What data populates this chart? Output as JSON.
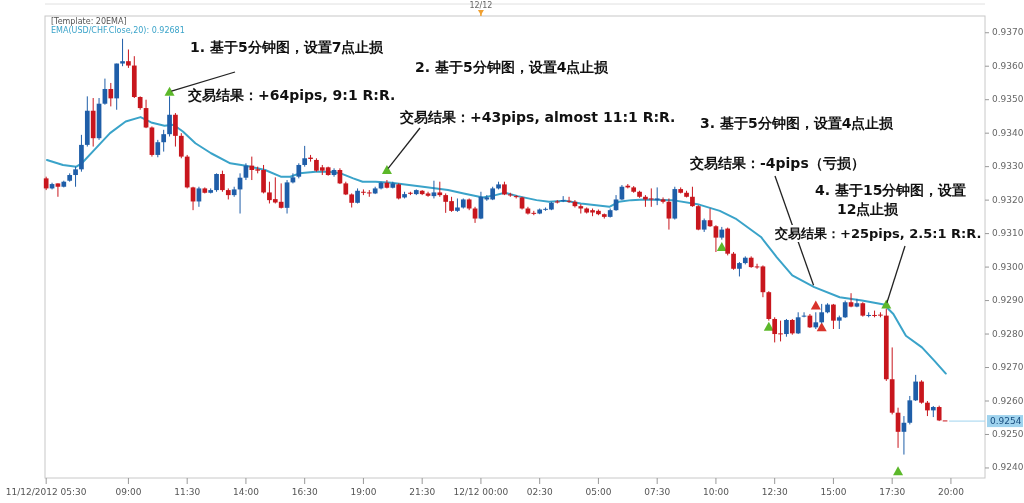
{
  "chart_data": {
    "type": "candlestick",
    "legend_title": "[Template: 20EMA]",
    "legend": "top left",
    "annotations": [
      "1. 基于5分钟图，设置7点止损",
      {
        "text": "交易结果：+64pips, 9:1 R:R.",
        "x": "2012-12-11T10:45",
        "y": 0.93524
      },
      "2. 基于5分钟图，设置4点止损",
      {
        "text": "交易结果：+43pips, almost 11:1 R:R.",
        "x": "2012-12-11T20:00",
        "y": 0.9329
      },
      "3. 基于5分钟图，设置4点止损",
      {
        "text": "交易结果：-4pips（亏损）",
        "x": "2012-12-12T14:11",
        "y": 0.9294
      },
      "4. 基于15分钟图，设置12点止损",
      {
        "text": "交易结果：+25pips, 2.5:1 R:R.",
        "x": "2012-12-12T17:15",
        "y": 0.92888
      }
    ],
    "xlim": [
      "2012-12-11T05:27",
      "2012-12-12T21:27"
    ],
    "xticks": [
      {
        "value": "2012-12-11T05:30",
        "label": "11/12/2012 05:30"
      },
      {
        "value": "2012-12-11T09:00",
        "label": "09:00"
      },
      {
        "value": "2012-12-11T11:30",
        "label": "11:30"
      },
      {
        "value": "2012-12-11T14:00",
        "label": "14:00"
      },
      {
        "value": "2012-12-11T16:30",
        "label": "16:30"
      },
      {
        "value": "2012-12-11T19:00",
        "label": "19:00"
      },
      {
        "value": "2012-12-11T21:30",
        "label": "21:30"
      },
      {
        "value": "2012-12-12T00:00",
        "label": "12/12 00:00"
      },
      {
        "value": "2012-12-12T02:30",
        "label": "02:30"
      },
      {
        "value": "2012-12-12T05:00",
        "label": "05:00"
      },
      {
        "value": "2012-12-12T07:30",
        "label": "07:30"
      },
      {
        "value": "2012-12-12T10:00",
        "label": "10:00"
      },
      {
        "value": "2012-12-12T12:30",
        "label": "12:30"
      },
      {
        "value": "2012-12-12T15:00",
        "label": "15:00"
      },
      {
        "value": "2012-12-12T17:30",
        "label": "17:30"
      },
      {
        "value": "2012-12-12T20:00",
        "label": "20:00"
      }
    ],
    "ylim": [
      0.9237,
      0.9375
    ],
    "yticks": [
      {
        "value": 0.924,
        "label": "0.9240"
      },
      {
        "value": 0.925,
        "label": "0.9250"
      },
      {
        "value": 0.926,
        "label": "0.9260"
      },
      {
        "value": 0.927,
        "label": "0.9270"
      },
      {
        "value": 0.928,
        "label": "0.9280"
      },
      {
        "value": 0.929,
        "label": "0.9290"
      },
      {
        "value": 0.93,
        "label": "0.9300"
      },
      {
        "value": 0.931,
        "label": "0.9310"
      },
      {
        "value": 0.932,
        "label": "0.9320"
      },
      {
        "value": 0.933,
        "label": "0.9330"
      },
      {
        "value": 0.934,
        "label": "0.9340"
      },
      {
        "value": 0.935,
        "label": "0.9350"
      },
      {
        "value": 0.936,
        "label": "0.9360"
      },
      {
        "value": 0.937,
        "label": "0.9370"
      }
    ],
    "ref_lines": [
      {
        "axis": "y",
        "value": 0.9254,
        "label": "0.9254",
        "color": "#9fd3ee"
      },
      {
        "axis": "x",
        "value": "2012-12-12T00:00",
        "label": "12/12",
        "color": "#f0a030"
      }
    ],
    "x": [
      "2012-12-11T05:30",
      "2012-12-11T05:45",
      "2012-12-11T06:00",
      "2012-12-11T06:15",
      "2012-12-11T06:30",
      "2012-12-11T06:45",
      "2012-12-11T07:00",
      "2012-12-11T07:15",
      "2012-12-11T07:30",
      "2012-12-11T07:45",
      "2012-12-11T08:00",
      "2012-12-11T08:15",
      "2012-12-11T08:30",
      "2012-12-11T08:45",
      "2012-12-11T09:00",
      "2012-12-11T09:15",
      "2012-12-11T09:30",
      "2012-12-11T09:45",
      "2012-12-11T10:00",
      "2012-12-11T10:15",
      "2012-12-11T10:30",
      "2012-12-11T10:45",
      "2012-12-11T11:00",
      "2012-12-11T11:15",
      "2012-12-11T11:30",
      "2012-12-11T11:45",
      "2012-12-11T12:00",
      "2012-12-11T12:15",
      "2012-12-11T12:30",
      "2012-12-11T12:45",
      "2012-12-11T13:00",
      "2012-12-11T13:15",
      "2012-12-11T13:30",
      "2012-12-11T13:45",
      "2012-12-11T14:00",
      "2012-12-11T14:15",
      "2012-12-11T14:30",
      "2012-12-11T14:45",
      "2012-12-11T15:00",
      "2012-12-11T15:15",
      "2012-12-11T15:30",
      "2012-12-11T15:45",
      "2012-12-11T16:00",
      "2012-12-11T16:15",
      "2012-12-11T16:30",
      "2012-12-11T16:45",
      "2012-12-11T17:00",
      "2012-12-11T17:15",
      "2012-12-11T17:30",
      "2012-12-11T17:45",
      "2012-12-11T18:00",
      "2012-12-11T18:15",
      "2012-12-11T18:30",
      "2012-12-11T18:45",
      "2012-12-11T19:00",
      "2012-12-11T19:15",
      "2012-12-11T19:30",
      "2012-12-11T19:45",
      "2012-12-11T20:00",
      "2012-12-11T20:15",
      "2012-12-11T20:30",
      "2012-12-11T20:45",
      "2012-12-11T21:00",
      "2012-12-11T21:15",
      "2012-12-11T21:30",
      "2012-12-11T21:45",
      "2012-12-11T22:00",
      "2012-12-11T22:15",
      "2012-12-11T22:30",
      "2012-12-11T22:45",
      "2012-12-11T23:00",
      "2012-12-11T23:15",
      "2012-12-11T23:30",
      "2012-12-11T23:45",
      "2012-12-12T00:00",
      "2012-12-12T00:15",
      "2012-12-12T00:30",
      "2012-12-12T00:45",
      "2012-12-12T01:00",
      "2012-12-12T01:15",
      "2012-12-12T01:30",
      "2012-12-12T01:45",
      "2012-12-12T02:00",
      "2012-12-12T02:15",
      "2012-12-12T02:30",
      "2012-12-12T02:45",
      "2012-12-12T03:00",
      "2012-12-12T03:15",
      "2012-12-12T03:30",
      "2012-12-12T03:45",
      "2012-12-12T04:00",
      "2012-12-12T04:15",
      "2012-12-12T04:30",
      "2012-12-12T04:45",
      "2012-12-12T05:00",
      "2012-12-12T05:15",
      "2012-12-12T05:30",
      "2012-12-12T05:45",
      "2012-12-12T06:00",
      "2012-12-12T06:15",
      "2012-12-12T06:30",
      "2012-12-12T06:45",
      "2012-12-12T07:00",
      "2012-12-12T07:15",
      "2012-12-12T07:30",
      "2012-12-12T07:45",
      "2012-12-12T08:00",
      "2012-12-12T08:15",
      "2012-12-12T08:30",
      "2012-12-12T08:45",
      "2012-12-12T09:00",
      "2012-12-12T09:15",
      "2012-12-12T09:30",
      "2012-12-12T09:45",
      "2012-12-12T10:00",
      "2012-12-12T10:15",
      "2012-12-12T10:30",
      "2012-12-12T10:45",
      "2012-12-12T11:00",
      "2012-12-12T11:15",
      "2012-12-12T11:30",
      "2012-12-12T11:45",
      "2012-12-12T12:00",
      "2012-12-12T12:15",
      "2012-12-12T12:30",
      "2012-12-12T12:45",
      "2012-12-12T13:00",
      "2012-12-12T13:15",
      "2012-12-12T13:30",
      "2012-12-12T13:45",
      "2012-12-12T14:00",
      "2012-12-12T14:15",
      "2012-12-12T14:30",
      "2012-12-12T14:45",
      "2012-12-12T15:00",
      "2012-12-12T15:15",
      "2012-12-12T15:30",
      "2012-12-12T15:45",
      "2012-12-12T16:00",
      "2012-12-12T16:15",
      "2012-12-12T16:30",
      "2012-12-12T16:45",
      "2012-12-12T17:00",
      "2012-12-12T17:15",
      "2012-12-12T17:30",
      "2012-12-12T17:45",
      "2012-12-12T18:00",
      "2012-12-12T18:15",
      "2012-12-12T18:30",
      "2012-12-12T18:45",
      "2012-12-12T19:00",
      "2012-12-12T19:15",
      "2012-12-12T19:30",
      "2012-12-12T19:45"
    ],
    "ohlc": [
      [
        0.93265,
        0.9327,
        0.9323,
        0.93235
      ],
      [
        0.93235,
        0.93252,
        0.93232,
        0.93248
      ],
      [
        0.9325,
        0.9325,
        0.9321,
        0.9324
      ],
      [
        0.9324,
        0.93258,
        0.93238,
        0.93255
      ],
      [
        0.93258,
        0.9328,
        0.93255,
        0.93275
      ],
      [
        0.93275,
        0.933,
        0.9324,
        0.93292
      ],
      [
        0.93292,
        0.93395,
        0.93285,
        0.93365
      ],
      [
        0.93365,
        0.9351,
        0.9336,
        0.93467
      ],
      [
        0.93467,
        0.93505,
        0.9336,
        0.93385
      ],
      [
        0.93385,
        0.93505,
        0.9338,
        0.93488
      ],
      [
        0.93488,
        0.93563,
        0.93485,
        0.93532
      ],
      [
        0.93532,
        0.9355,
        0.9348,
        0.93504
      ],
      [
        0.93504,
        0.93608,
        0.9347,
        0.93608
      ],
      [
        0.93608,
        0.93682,
        0.936,
        0.93615
      ],
      [
        0.93615,
        0.9365,
        0.93595,
        0.93602
      ],
      [
        0.93602,
        0.9363,
        0.93505,
        0.93508
      ],
      [
        0.93508,
        0.9351,
        0.9347,
        0.93475
      ],
      [
        0.93475,
        0.935,
        0.93415,
        0.93417
      ],
      [
        0.93417,
        0.9342,
        0.9333,
        0.93335
      ],
      [
        0.93335,
        0.9338,
        0.93328,
        0.93373
      ],
      [
        0.93373,
        0.9341,
        0.93345,
        0.93397
      ],
      [
        0.93397,
        0.9351,
        0.9339,
        0.93455
      ],
      [
        0.93455,
        0.9346,
        0.9336,
        0.93392
      ],
      [
        0.93392,
        0.934,
        0.93325,
        0.9333
      ],
      [
        0.9333,
        0.93335,
        0.93235,
        0.93238
      ],
      [
        0.93238,
        0.9324,
        0.9317,
        0.93196
      ],
      [
        0.93196,
        0.9324,
        0.9318,
        0.93235
      ],
      [
        0.93235,
        0.93238,
        0.9322,
        0.93222
      ],
      [
        0.93222,
        0.93235,
        0.9322,
        0.9323
      ],
      [
        0.9323,
        0.9328,
        0.93225,
        0.93278
      ],
      [
        0.93278,
        0.93288,
        0.93225,
        0.9323
      ],
      [
        0.9323,
        0.93235,
        0.93202,
        0.93215
      ],
      [
        0.93215,
        0.9324,
        0.9321,
        0.93232
      ],
      [
        0.93232,
        0.9328,
        0.9316,
        0.93267
      ],
      [
        0.93267,
        0.9331,
        0.9326,
        0.93303
      ],
      [
        0.93303,
        0.9333,
        0.9326,
        0.9329
      ],
      [
        0.93292,
        0.933,
        0.9328,
        0.93288
      ],
      [
        0.9329,
        0.93305,
        0.9322,
        0.93223
      ],
      [
        0.93223,
        0.93255,
        0.9319,
        0.932
      ],
      [
        0.93203,
        0.93268,
        0.9319,
        0.93193
      ],
      [
        0.93195,
        0.9325,
        0.93175,
        0.93177
      ],
      [
        0.93177,
        0.9326,
        0.9316,
        0.93253
      ],
      [
        0.93253,
        0.9328,
        0.9325,
        0.93268
      ],
      [
        0.9327,
        0.9331,
        0.93265,
        0.93305
      ],
      [
        0.93305,
        0.93362,
        0.933,
        0.93325
      ],
      [
        0.93327,
        0.93335,
        0.93315,
        0.93323
      ],
      [
        0.9332,
        0.93325,
        0.93285,
        0.93288
      ],
      [
        0.93298,
        0.93305,
        0.93275,
        0.93288
      ],
      [
        0.93298,
        0.933,
        0.93273,
        0.93275
      ],
      [
        0.93275,
        0.93295,
        0.9327,
        0.9329
      ],
      [
        0.9329,
        0.93295,
        0.93248,
        0.9325
      ],
      [
        0.9325,
        0.93255,
        0.93215,
        0.93217
      ],
      [
        0.93217,
        0.9322,
        0.93178,
        0.93192
      ],
      [
        0.93192,
        0.93235,
        0.9319,
        0.93228
      ],
      [
        0.93225,
        0.93232,
        0.93215,
        0.93222
      ],
      [
        0.93223,
        0.9323,
        0.9321,
        0.9322
      ],
      [
        0.9322,
        0.9324,
        0.93218,
        0.93235
      ],
      [
        0.93235,
        0.93255,
        0.93232,
        0.93252
      ],
      [
        0.93252,
        0.9326,
        0.93235,
        0.93237
      ],
      [
        0.93237,
        0.93255,
        0.93235,
        0.9325
      ],
      [
        0.93247,
        0.9325,
        0.93202,
        0.93205
      ],
      [
        0.93208,
        0.93225,
        0.93205,
        0.93218
      ],
      [
        0.93222,
        0.93225,
        0.93215,
        0.93219
      ],
      [
        0.93218,
        0.93232,
        0.93215,
        0.9323
      ],
      [
        0.93228,
        0.9323,
        0.93215,
        0.93218
      ],
      [
        0.9322,
        0.93225,
        0.9321,
        0.93213
      ],
      [
        0.93212,
        0.93258,
        0.93205,
        0.93223
      ],
      [
        0.93223,
        0.93255,
        0.9321,
        0.93215
      ],
      [
        0.93215,
        0.9322,
        0.93162,
        0.93195
      ],
      [
        0.93197,
        0.9321,
        0.93165,
        0.93168
      ],
      [
        0.93168,
        0.93205,
        0.93165,
        0.93178
      ],
      [
        0.93178,
        0.93205,
        0.93175,
        0.93202
      ],
      [
        0.93202,
        0.93205,
        0.9317,
        0.93175
      ],
      [
        0.93175,
        0.9318,
        0.93132,
        0.93145
      ],
      [
        0.93145,
        0.93225,
        0.93143,
        0.9321
      ],
      [
        0.93202,
        0.93215,
        0.93198,
        0.93208
      ],
      [
        0.93202,
        0.9324,
        0.932,
        0.93235
      ],
      [
        0.93235,
        0.93255,
        0.93232,
        0.93247
      ],
      [
        0.93247,
        0.93255,
        0.93215,
        0.93217
      ],
      [
        0.93217,
        0.93222,
        0.9321,
        0.93214
      ],
      [
        0.93212,
        0.93215,
        0.93205,
        0.93209
      ],
      [
        0.93208,
        0.9321,
        0.93172,
        0.93175
      ],
      [
        0.93175,
        0.9318,
        0.93157,
        0.9316
      ],
      [
        0.93162,
        0.93168,
        0.93155,
        0.93159
      ],
      [
        0.9316,
        0.93175,
        0.93158,
        0.93172
      ],
      [
        0.93172,
        0.93178,
        0.93168,
        0.93174
      ],
      [
        0.93172,
        0.93195,
        0.9317,
        0.93192
      ],
      [
        0.93196,
        0.932,
        0.9319,
        0.93193
      ],
      [
        0.93197,
        0.93212,
        0.93194,
        0.932
      ],
      [
        0.93198,
        0.9321,
        0.93192,
        0.93195
      ],
      [
        0.93195,
        0.932,
        0.93178,
        0.93182
      ],
      [
        0.93182,
        0.93188,
        0.9316,
        0.93175
      ],
      [
        0.93175,
        0.93178,
        0.9316,
        0.93163
      ],
      [
        0.9317,
        0.93175,
        0.93152,
        0.93163
      ],
      [
        0.93168,
        0.93172,
        0.93155,
        0.93158
      ],
      [
        0.93158,
        0.9316,
        0.93145,
        0.9315
      ],
      [
        0.9315,
        0.93175,
        0.93148,
        0.9317
      ],
      [
        0.9317,
        0.93215,
        0.93168,
        0.93202
      ],
      [
        0.93202,
        0.93245,
        0.932,
        0.9324
      ],
      [
        0.93243,
        0.93248,
        0.93235,
        0.93238
      ],
      [
        0.93238,
        0.93242,
        0.93222,
        0.93225
      ],
      [
        0.93225,
        0.93228,
        0.93207,
        0.9321
      ],
      [
        0.9321,
        0.93215,
        0.9318,
        0.93202
      ],
      [
        0.93205,
        0.93235,
        0.9318,
        0.93202
      ],
      [
        0.932,
        0.93238,
        0.93185,
        0.93205
      ],
      [
        0.93202,
        0.93208,
        0.9319,
        0.93195
      ],
      [
        0.93195,
        0.93205,
        0.93112,
        0.93145
      ],
      [
        0.93145,
        0.9324,
        0.93142,
        0.93233
      ],
      [
        0.93233,
        0.93238,
        0.9322,
        0.93222
      ],
      [
        0.93222,
        0.93228,
        0.93208,
        0.9321
      ],
      [
        0.9321,
        0.9324,
        0.9318,
        0.93182
      ],
      [
        0.93182,
        0.93185,
        0.9311,
        0.93112
      ],
      [
        0.93112,
        0.93145,
        0.93105,
        0.9314
      ],
      [
        0.9314,
        0.93175,
        0.9312,
        0.93122
      ],
      [
        0.93122,
        0.93125,
        0.93045,
        0.93088
      ],
      [
        0.93088,
        0.9312,
        0.93082,
        0.93112
      ],
      [
        0.93115,
        0.93118,
        0.93035,
        0.9304
      ],
      [
        0.9304,
        0.93045,
        0.92992,
        0.92995
      ],
      [
        0.92995,
        0.93015,
        0.92972,
        0.93012
      ],
      [
        0.93012,
        0.93032,
        0.93008,
        0.93028
      ],
      [
        0.93028,
        0.93032,
        0.92998,
        0.93
      ],
      [
        0.93002,
        0.9301,
        0.92995,
        0.92999
      ],
      [
        0.93002,
        0.93005,
        0.9291,
        0.92925
      ],
      [
        0.92925,
        0.92928,
        0.9284,
        0.92845
      ],
      [
        0.92845,
        0.9285,
        0.92775,
        0.928
      ],
      [
        0.92802,
        0.9284,
        0.92778,
        0.92799
      ],
      [
        0.928,
        0.92845,
        0.92792,
        0.92842
      ],
      [
        0.92842,
        0.92845,
        0.92798,
        0.92802
      ],
      [
        0.92802,
        0.92865,
        0.928,
        0.9285
      ],
      [
        0.92852,
        0.92865,
        0.9285,
        0.92855
      ],
      [
        0.92855,
        0.9286,
        0.92818,
        0.9282
      ],
      [
        0.9282,
        0.92865,
        0.92815,
        0.92835
      ],
      [
        0.92835,
        0.9289,
        0.92832,
        0.92865
      ],
      [
        0.92865,
        0.92892,
        0.92862,
        0.92888
      ],
      [
        0.92888,
        0.9289,
        0.92815,
        0.9284
      ],
      [
        0.9284,
        0.92855,
        0.92815,
        0.9285
      ],
      [
        0.9285,
        0.929,
        0.92848,
        0.92895
      ],
      [
        0.92895,
        0.92922,
        0.9288,
        0.92882
      ],
      [
        0.92882,
        0.92905,
        0.9288,
        0.92892
      ],
      [
        0.92892,
        0.92895,
        0.92852,
        0.92855
      ],
      [
        0.92854,
        0.92865,
        0.9285,
        0.92857
      ],
      [
        0.92857,
        0.9287,
        0.9285,
        0.92854
      ],
      [
        0.92858,
        0.92865,
        0.9285,
        0.92855
      ],
      [
        0.92855,
        0.92875,
        0.9266,
        0.92665
      ],
      [
        0.92665,
        0.9276,
        0.9256,
        0.92565
      ],
      [
        0.92565,
        0.9258,
        0.9246,
        0.92508
      ],
      [
        0.92508,
        0.92555,
        0.9244,
        0.92535
      ],
      [
        0.92535,
        0.92615,
        0.9253,
        0.92602
      ],
      [
        0.92602,
        0.92678,
        0.926,
        0.92658
      ],
      [
        0.92658,
        0.92662,
        0.92592,
        0.92595
      ],
      [
        0.92595,
        0.926,
        0.92555,
        0.92572
      ],
      [
        0.92572,
        0.92585,
        0.92552,
        0.92582
      ],
      [
        0.92582,
        0.92586,
        0.9254,
        0.92542
      ],
      [
        0.92542,
        0.92542,
        0.92542,
        0.92542
      ]
    ],
    "colors": [
      "#c8161d",
      "#1f5ea8",
      "#c8161d",
      "#1f5ea8",
      "#1f5ea8",
      "#1f5ea8",
      "#1f5ea8",
      "#1f5ea8",
      "#c8161d",
      "#1f5ea8",
      "#1f5ea8",
      "#c8161d",
      "#1f5ea8",
      "#1f5ea8",
      "#c8161d",
      "#c8161d",
      "#c8161d",
      "#c8161d",
      "#c8161d",
      "#1f5ea8",
      "#1f5ea8",
      "#1f5ea8",
      "#c8161d",
      "#c8161d",
      "#c8161d",
      "#c8161d",
      "#1f5ea8",
      "#c8161d",
      "#1f5ea8",
      "#1f5ea8",
      "#c8161d",
      "#c8161d",
      "#1f5ea8",
      "#1f5ea8",
      "#1f5ea8",
      "#c8161d",
      "#c8161d",
      "#c8161d",
      "#c8161d",
      "#c8161d",
      "#c8161d",
      "#1f5ea8",
      "#1f5ea8",
      "#1f5ea8",
      "#1f5ea8",
      "#c8161d",
      "#c8161d",
      "#c8161d",
      "#c8161d",
      "#1f5ea8",
      "#c8161d",
      "#c8161d",
      "#c8161d",
      "#1f5ea8",
      "#c8161d",
      "#c8161d",
      "#1f5ea8",
      "#1f5ea8",
      "#c8161d",
      "#1f5ea8",
      "#c8161d",
      "#1f5ea8",
      "#c8161d",
      "#1f5ea8",
      "#c8161d",
      "#c8161d",
      "#1f5ea8",
      "#c8161d",
      "#c8161d",
      "#c8161d",
      "#1f5ea8",
      "#1f5ea8",
      "#c8161d",
      "#c8161d",
      "#1f5ea8",
      "#1f5ea8",
      "#1f5ea8",
      "#1f5ea8",
      "#c8161d",
      "#c8161d",
      "#c8161d",
      "#c8161d",
      "#c8161d",
      "#c8161d",
      "#1f5ea8",
      "#1f5ea8",
      "#1f5ea8",
      "#c8161d",
      "#1f5ea8",
      "#c8161d",
      "#c8161d",
      "#c8161d",
      "#c8161d",
      "#c8161d",
      "#c8161d",
      "#c8161d",
      "#1f5ea8",
      "#1f5ea8",
      "#1f5ea8",
      "#c8161d",
      "#c8161d",
      "#c8161d",
      "#c8161d",
      "#c8161d",
      "#1f5ea8",
      "#c8161d",
      "#c8161d",
      "#1f5ea8",
      "#c8161d",
      "#c8161d",
      "#c8161d",
      "#c8161d",
      "#1f5ea8",
      "#c8161d",
      "#c8161d",
      "#1f5ea8",
      "#c8161d",
      "#c8161d",
      "#1f5ea8",
      "#1f5ea8",
      "#c8161d",
      "#c8161d",
      "#c8161d",
      "#c8161d",
      "#c8161d",
      "#c8161d",
      "#1f5ea8",
      "#c8161d",
      "#1f5ea8",
      "#1f5ea8",
      "#c8161d",
      "#1f5ea8",
      "#1f5ea8",
      "#1f5ea8",
      "#c8161d",
      "#1f5ea8",
      "#1f5ea8",
      "#c8161d",
      "#1f5ea8",
      "#c8161d",
      "#1f5ea8",
      "#c8161d",
      "#c8161d",
      "#c8161d",
      "#c8161d",
      "#c8161d",
      "#1f5ea8",
      "#1f5ea8",
      "#1f5ea8",
      "#c8161d",
      "#c8161d",
      "#1f5ea8",
      "#c8161d",
      "#c8161d"
    ],
    "series": [
      {
        "type": "line",
        "name": "EMA(USD/CHF.Close,20): 0.92681",
        "color": "#3aa3c9",
        "marker": "none",
        "x": [
          "2012-12-11T05:32",
          "2012-12-11T06:13",
          "2012-12-11T06:47",
          "2012-12-11T07:01",
          "2012-12-11T07:33",
          "2012-12-11T08:13",
          "2012-12-11T08:53",
          "2012-12-11T09:31",
          "2012-12-11T09:58",
          "2012-12-11T10:32",
          "2012-12-11T10:55",
          "2012-12-11T11:19",
          "2012-12-11T11:51",
          "2012-12-11T12:31",
          "2012-12-11T13:20",
          "2012-12-11T14:00",
          "2012-12-11T14:49",
          "2012-12-11T15:29",
          "2012-12-11T15:53",
          "2012-12-11T16:17",
          "2012-12-11T16:58",
          "2012-12-11T17:30",
          "2012-12-11T18:02",
          "2012-12-11T18:34",
          "2012-12-11T18:58",
          "2012-12-11T19:31",
          "2012-12-11T20:11",
          "2012-12-11T21:32",
          "2012-12-11T22:36",
          "2012-12-11T23:16",
          "2012-12-12T00:05",
          "2012-12-12T00:37",
          "2012-12-12T01:01",
          "2012-12-12T01:34",
          "2012-12-12T02:22",
          "2012-12-12T02:54",
          "2012-12-12T03:35",
          "2012-12-12T04:15",
          "2012-12-12T05:28",
          "2012-12-12T05:52",
          "2012-12-12T06:24",
          "2012-12-12T06:56",
          "2012-12-12T08:09",
          "2012-12-12T09:13",
          "2012-12-12T10:10",
          "2012-12-12T10:50",
          "2012-12-12T11:55",
          "2012-12-12T12:35",
          "2012-12-12T13:15",
          "2012-12-12T14:11",
          "2012-12-12T15:16",
          "2012-12-12T16:13",
          "2012-12-12T17:09",
          "2012-12-12T17:33",
          "2012-12-12T18:05",
          "2012-12-12T18:46",
          "2012-12-12T19:18",
          "2012-12-12T19:47"
        ],
        "values": [
          0.9332,
          0.93305,
          0.933,
          0.9331,
          0.9335,
          0.934,
          0.93435,
          0.93448,
          0.93432,
          0.93422,
          0.93425,
          0.93405,
          0.9337,
          0.9334,
          0.9331,
          0.93303,
          0.9329,
          0.9327,
          0.9327,
          0.9328,
          0.93285,
          0.93285,
          0.9328,
          0.93265,
          0.93255,
          0.93255,
          0.93252,
          0.9324,
          0.9323,
          0.9322,
          0.93208,
          0.93215,
          0.93222,
          0.93212,
          0.932,
          0.93195,
          0.93198,
          0.9319,
          0.9318,
          0.93195,
          0.932,
          0.93202,
          0.932,
          0.93188,
          0.93168,
          0.93145,
          0.9309,
          0.9303,
          0.92975,
          0.9294,
          0.9291,
          0.929,
          0.92888,
          0.9286,
          0.92795,
          0.9276,
          0.9272,
          0.92682
        ]
      },
      {
        "type": "scatter",
        "color": "#5cb82a",
        "marker": "triangle",
        "x": [
          "2012-12-11T10:45",
          "2012-12-11T20:00",
          "2012-12-12T10:15",
          "2012-12-12T12:15",
          "2012-12-12T17:15",
          "2012-12-12T17:45"
        ],
        "values": [
          0.93524,
          0.9329,
          0.9306,
          0.92822,
          0.92888,
          0.9239
        ]
      },
      {
        "type": "scatter",
        "color": "#d9332b",
        "marker": "triangle",
        "x": [
          "2012-12-12T14:15",
          "2012-12-12T14:30"
        ],
        "values": [
          0.92885,
          0.9282
        ]
      }
    ]
  }
}
